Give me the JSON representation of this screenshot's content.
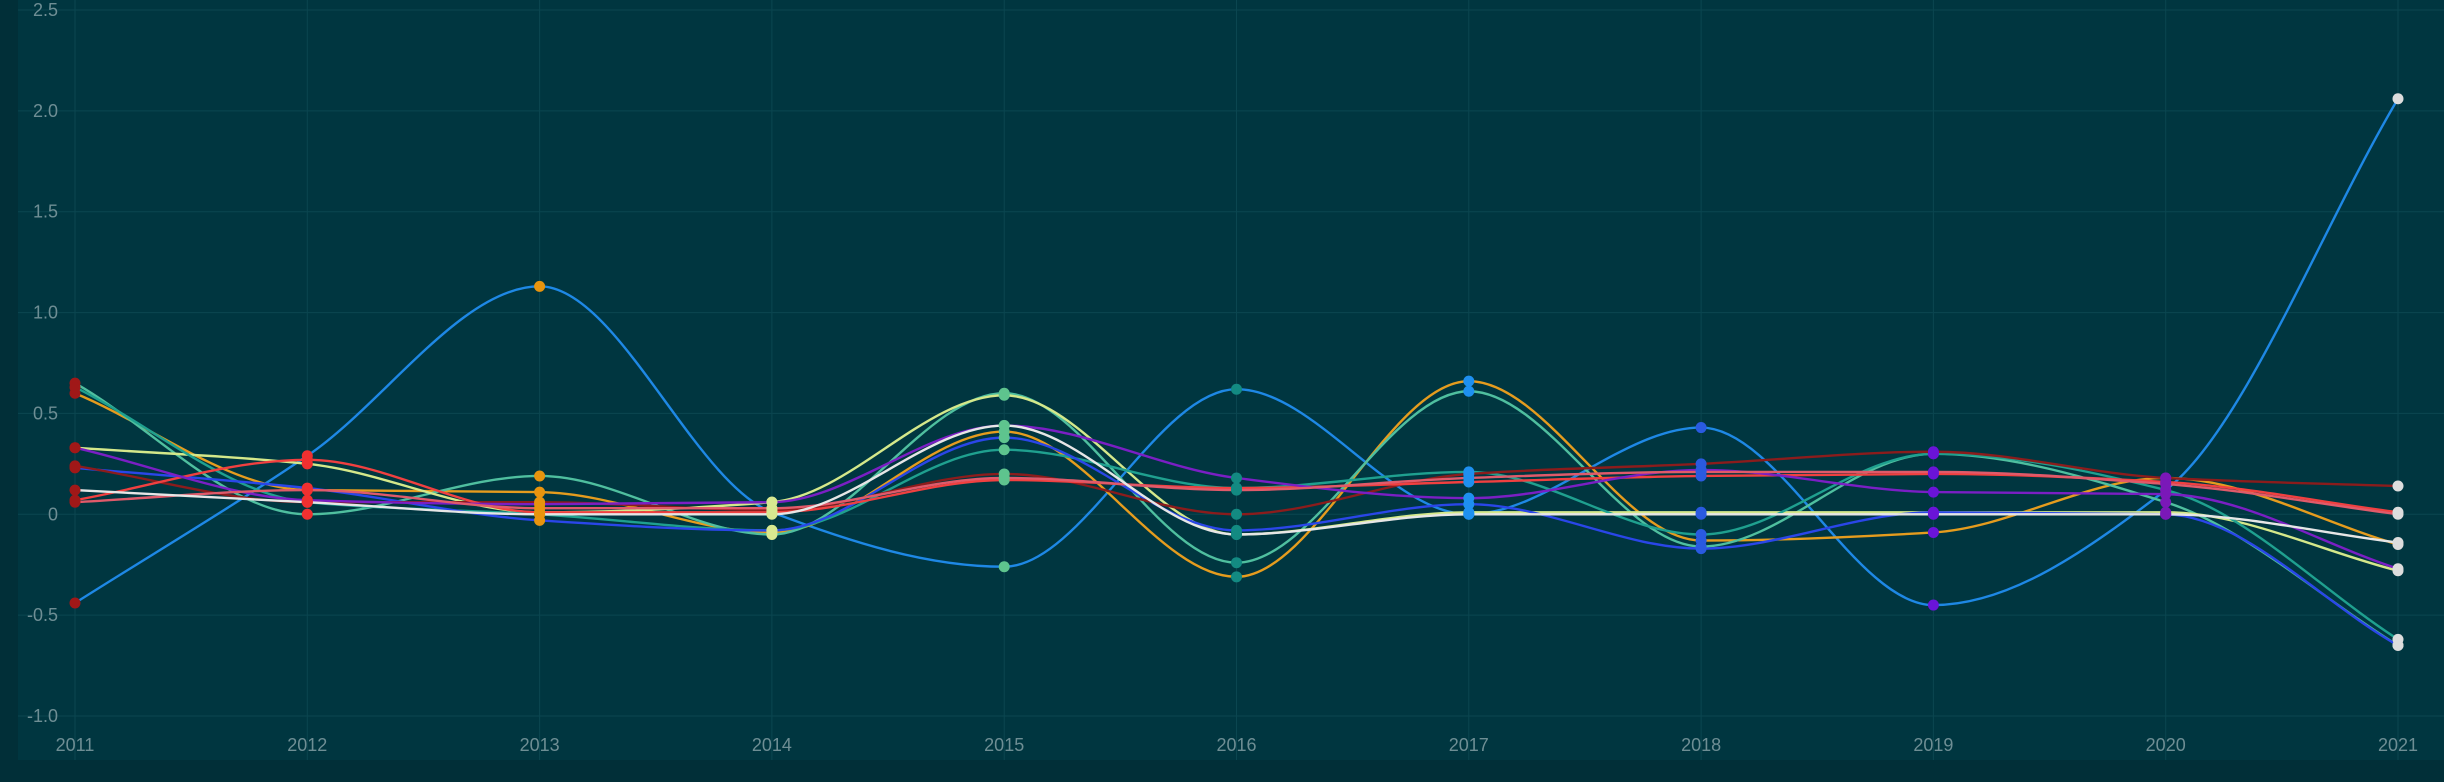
{
  "chart_data": {
    "type": "line",
    "title": "",
    "xlabel": "",
    "ylabel": "",
    "x": [
      "2011",
      "2012",
      "2013",
      "2014",
      "2015",
      "2016",
      "2017",
      "2018",
      "2019",
      "2020",
      "2021"
    ],
    "ylim": [
      -1.0,
      2.5
    ],
    "yticks": [
      "-1.0",
      "-0.5",
      "0",
      "0.5",
      "1.0",
      "1.5",
      "2.0",
      "2.5"
    ],
    "grid": true,
    "legend": "none",
    "colors": {
      "background": "#012f38",
      "plot_area": "#003640",
      "grid": "#0b4650",
      "tick_label": "#6e8e94"
    },
    "series": [
      {
        "values": [
          -0.44,
          0.29,
          1.13,
          0.01,
          -0.26,
          0.62,
          0.0,
          0.43,
          -0.45,
          0.12,
          2.06
        ],
        "color": "#1e88e5"
      },
      {
        "values": [
          0.6,
          0.12,
          0.11,
          -0.09,
          0.41,
          -0.31,
          0.66,
          -0.13,
          -0.09,
          0.18,
          -0.15
        ],
        "color": "#e59c1e"
      },
      {
        "values": [
          0.65,
          0.0,
          0.19,
          -0.1,
          0.6,
          -0.24,
          0.61,
          -0.16,
          0.3,
          0.06,
          -0.65
        ],
        "color": "#4fbf9f"
      },
      {
        "values": [
          0.33,
          0.25,
          0.01,
          0.06,
          0.59,
          -0.1,
          0.01,
          0.01,
          0.01,
          0.01,
          -0.28
        ],
        "color": "#d4e88a"
      },
      {
        "values": [
          0.63,
          0.06,
          0.0,
          -0.08,
          0.32,
          0.13,
          0.21,
          -0.1,
          0.3,
          0.12,
          -0.62
        ],
        "color": "#1fa08f"
      },
      {
        "values": [
          0.23,
          0.13,
          -0.03,
          -0.08,
          0.38,
          -0.08,
          0.05,
          -0.17,
          0.01,
          0.0,
          -0.65
        ],
        "color": "#2a46e8"
      },
      {
        "values": [
          0.24,
          0.06,
          0.06,
          0.02,
          0.2,
          0.0,
          0.2,
          0.25,
          0.31,
          0.18,
          0.14
        ],
        "color": "#8b1c1c"
      },
      {
        "values": [
          0.07,
          0.27,
          0.01,
          0.01,
          0.17,
          0.13,
          0.16,
          0.19,
          0.2,
          0.16,
          0.01
        ],
        "color": "#f04040"
      },
      {
        "values": [
          0.33,
          0.07,
          0.05,
          0.06,
          0.44,
          0.18,
          0.08,
          0.22,
          0.11,
          0.1,
          -0.27
        ],
        "color": "#7a1fc4"
      },
      {
        "values": [
          0.06,
          0.12,
          0.03,
          0.03,
          0.18,
          0.12,
          0.18,
          0.21,
          0.21,
          0.15,
          0.0
        ],
        "color": "#e05a6a"
      },
      {
        "values": [
          0.12,
          0.06,
          0.0,
          0.0,
          0.44,
          -0.1,
          0.0,
          0.0,
          0.0,
          0.0,
          -0.14
        ],
        "color": "#e6e6e6"
      }
    ],
    "markers": [
      {
        "x": "2011",
        "color": "#a01818"
      },
      {
        "x": "2012",
        "color": "#f03030"
      },
      {
        "x": "2013",
        "color": "#e8940e"
      },
      {
        "x": "2014",
        "color": "#d8e890"
      },
      {
        "x": "2015",
        "color": "#5ec48e"
      },
      {
        "x": "2016",
        "color": "#138a82"
      },
      {
        "x": "2017",
        "color": "#1e90f0"
      },
      {
        "x": "2018",
        "color": "#2a5ae0"
      },
      {
        "x": "2019",
        "color": "#6a14d8"
      },
      {
        "x": "2020",
        "color": "#7a18b8"
      },
      {
        "x": "2021",
        "color": "#dddddd"
      }
    ]
  }
}
